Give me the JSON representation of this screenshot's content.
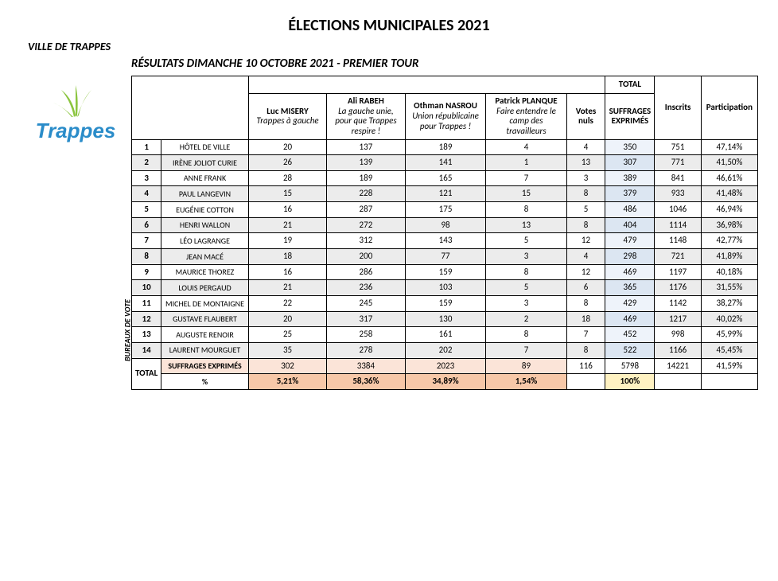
{
  "title": "ÉLECTIONS MUNICIPALES 2021",
  "city": "VILLE DE TRAPPES",
  "subtitle": "RÉSULTATS DIMANCHE 10 OCTOBRE 2021 - PREMIER TOUR",
  "totalLabel": "TOTAL",
  "rotLabel": "BUREAUX DE VOTE",
  "candidates": [
    {
      "name": "Luc MISERY",
      "list": "Trappes à gauche"
    },
    {
      "name": "Ali RABEH",
      "list": "La gauche unie, pour que Trappes respire !"
    },
    {
      "name": "Othman NASROU",
      "list": "Union républicaine pour Trappes !"
    },
    {
      "name": "Patrick PLANQUE",
      "list": "Faire entendre le camp des travailleurs"
    }
  ],
  "col_votes_nuls": "Votes nuls",
  "col_suffrages": "SUFFRAGES EXPRIMÉS",
  "col_inscrits": "Inscrits",
  "col_participation": "Participation",
  "rows": [
    {
      "n": "1",
      "name": "HÔTEL DE VILLE",
      "c": [
        "20",
        "137",
        "189",
        "4"
      ],
      "nuls": "4",
      "suf": "350",
      "ins": "751",
      "part": "47,14%"
    },
    {
      "n": "2",
      "name": "IRÈNE JOLIOT CURIE",
      "c": [
        "26",
        "139",
        "141",
        "1"
      ],
      "nuls": "13",
      "suf": "307",
      "ins": "771",
      "part": "41,50%"
    },
    {
      "n": "3",
      "name": "ANNE FRANK",
      "c": [
        "28",
        "189",
        "165",
        "7"
      ],
      "nuls": "3",
      "suf": "389",
      "ins": "841",
      "part": "46,61%"
    },
    {
      "n": "4",
      "name": "PAUL LANGEVIN",
      "c": [
        "15",
        "228",
        "121",
        "15"
      ],
      "nuls": "8",
      "suf": "379",
      "ins": "933",
      "part": "41,48%"
    },
    {
      "n": "5",
      "name": "EUGÉNIE COTTON",
      "c": [
        "16",
        "287",
        "175",
        "8"
      ],
      "nuls": "5",
      "suf": "486",
      "ins": "1046",
      "part": "46,94%"
    },
    {
      "n": "6",
      "name": "HENRI WALLON",
      "c": [
        "21",
        "272",
        "98",
        "13"
      ],
      "nuls": "8",
      "suf": "404",
      "ins": "1114",
      "part": "36,98%"
    },
    {
      "n": "7",
      "name": "LÉO LAGRANGE",
      "c": [
        "19",
        "312",
        "143",
        "5"
      ],
      "nuls": "12",
      "suf": "479",
      "ins": "1148",
      "part": "42,77%"
    },
    {
      "n": "8",
      "name": "JEAN MACÉ",
      "c": [
        "18",
        "200",
        "77",
        "3"
      ],
      "nuls": "4",
      "suf": "298",
      "ins": "721",
      "part": "41,89%"
    },
    {
      "n": "9",
      "name": "MAURICE THOREZ",
      "c": [
        "16",
        "286",
        "159",
        "8"
      ],
      "nuls": "12",
      "suf": "469",
      "ins": "1197",
      "part": "40,18%"
    },
    {
      "n": "10",
      "name": "LOUIS PERGAUD",
      "c": [
        "21",
        "236",
        "103",
        "5"
      ],
      "nuls": "6",
      "suf": "365",
      "ins": "1176",
      "part": "31,55%"
    },
    {
      "n": "11",
      "name": "MICHEL DE MONTAIGNE",
      "c": [
        "22",
        "245",
        "159",
        "3"
      ],
      "nuls": "8",
      "suf": "429",
      "ins": "1142",
      "part": "38,27%"
    },
    {
      "n": "12",
      "name": "GUSTAVE FLAUBERT",
      "c": [
        "20",
        "317",
        "130",
        "2"
      ],
      "nuls": "18",
      "suf": "469",
      "ins": "1217",
      "part": "40,02%"
    },
    {
      "n": "13",
      "name": "AUGUSTE RENOIR",
      "c": [
        "25",
        "258",
        "161",
        "8"
      ],
      "nuls": "7",
      "suf": "452",
      "ins": "998",
      "part": "45,99%"
    },
    {
      "n": "14",
      "name": "LAURENT MOURGUET",
      "c": [
        "35",
        "278",
        "202",
        "7"
      ],
      "nuls": "8",
      "suf": "522",
      "ins": "1166",
      "part": "45,45%"
    }
  ],
  "total_label_left": "TOTAL",
  "total_row1_label": "SUFFRAGES EXPRIMÉS",
  "total_row2_label": "%",
  "total_row1": {
    "c": [
      "302",
      "3384",
      "2023",
      "89"
    ],
    "nuls": "116",
    "suf": "5798",
    "ins": "14221",
    "part": "41,59%"
  },
  "total_row2": {
    "c": [
      "5,21%",
      "58,36%",
      "34,89%",
      "1,54%"
    ],
    "nuls": "",
    "suf": "100%",
    "ins": "",
    "part": ""
  },
  "colors": {
    "even_bg": "#ececec",
    "suf_odd": "#eef3fa",
    "suf_even": "#dce6f2",
    "tot1": "#fbe4d8",
    "tot2": "#f7c8a8",
    "hundred": "#fff2c2",
    "logo_blue": "#2a8cc9",
    "logo_green": "#8bc53f"
  }
}
